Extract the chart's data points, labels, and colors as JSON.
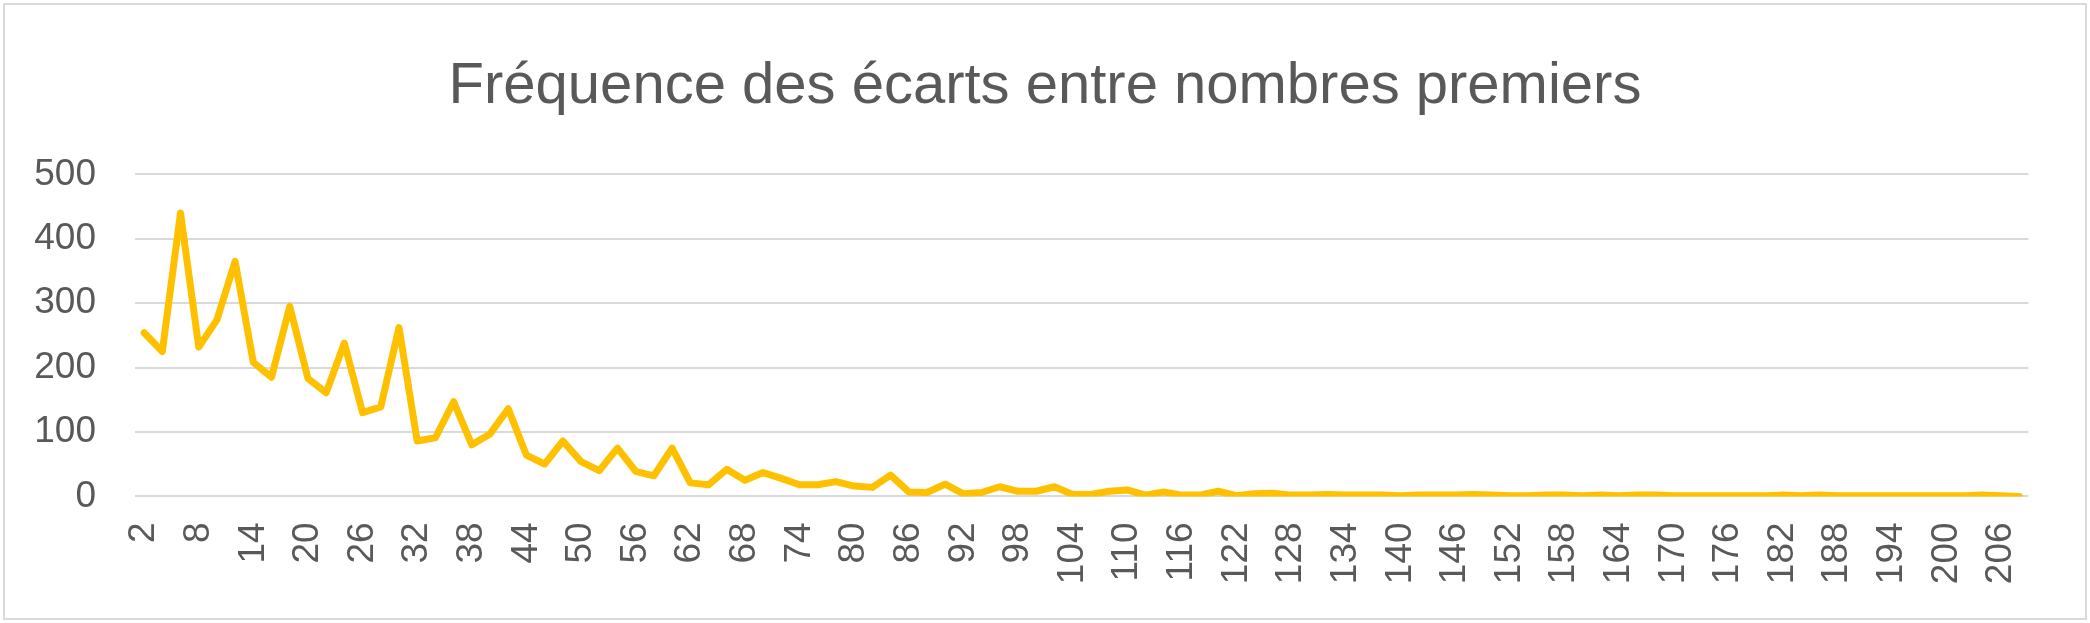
{
  "chart_data": {
    "type": "line",
    "title": "Fréquence des écarts entre nombres premiers",
    "categories": [
      "2",
      null,
      null,
      "8",
      null,
      null,
      "14",
      null,
      null,
      "20",
      null,
      null,
      "26",
      null,
      null,
      "32",
      null,
      null,
      "38",
      null,
      null,
      "44",
      null,
      null,
      "50",
      null,
      null,
      "56",
      null,
      null,
      "62",
      null,
      null,
      "68",
      null,
      null,
      "74",
      null,
      null,
      "80",
      null,
      null,
      "86",
      null,
      null,
      "92",
      null,
      null,
      "98",
      null,
      null,
      "104",
      null,
      null,
      "110",
      null,
      null,
      "116",
      null,
      null,
      "122",
      null,
      null,
      "128",
      null,
      null,
      "134",
      null,
      null,
      "140",
      null,
      null,
      "146",
      null,
      null,
      "152",
      null,
      null,
      "158",
      null,
      null,
      "164",
      null,
      null,
      "170",
      null,
      null,
      "176",
      null,
      null,
      "182",
      null,
      null,
      "188",
      null,
      null,
      "194",
      null,
      null,
      "200",
      null,
      null,
      "206",
      null
    ],
    "series": [
      {
        "color": "#ffc000",
        "values": [
          254,
          225,
          440,
          232,
          274,
          365,
          208,
          185,
          295,
          183,
          161,
          238,
          130,
          139,
          262,
          86,
          91,
          147,
          80,
          97,
          136,
          64,
          50,
          86,
          54,
          40,
          75,
          39,
          32,
          75,
          21,
          18,
          42,
          25,
          37,
          28,
          18,
          18,
          23,
          16,
          14,
          33,
          7,
          6,
          19,
          4,
          6,
          15,
          8,
          8,
          15,
          3,
          3,
          8,
          10,
          2,
          7,
          2,
          2,
          8,
          1,
          4,
          5,
          2,
          2,
          3,
          2,
          2,
          2,
          1,
          2,
          2,
          2,
          3,
          2,
          1,
          1,
          2,
          2,
          1,
          2,
          1,
          2,
          2,
          1,
          1,
          1,
          1,
          1,
          1,
          2,
          1,
          2,
          1,
          1,
          1,
          1,
          1,
          1,
          1,
          1,
          2,
          1,
          0
        ]
      }
    ],
    "ylim": [
      0,
      500
    ],
    "yticks": [
      0,
      100,
      200,
      300,
      400,
      500
    ],
    "grid": "y",
    "line_style": "solid"
  }
}
